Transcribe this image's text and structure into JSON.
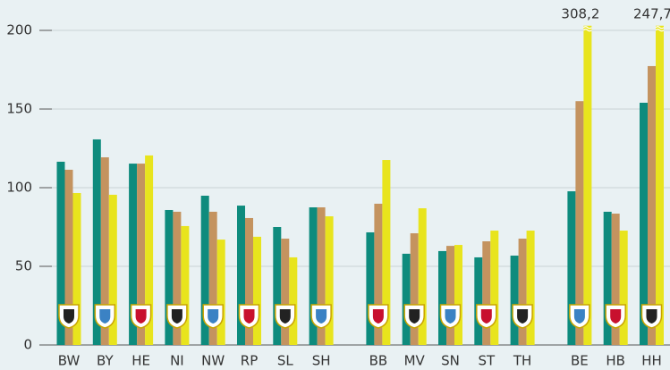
{
  "chart_data": {
    "type": "bar",
    "categories": [
      "BW",
      "BY",
      "HE",
      "NI",
      "NW",
      "RP",
      "SL",
      "SH",
      "BB",
      "MV",
      "SN",
      "ST",
      "TH",
      "BE",
      "HB",
      "HH"
    ],
    "series": [
      {
        "color": "#0e8b7d",
        "values": [
          116.5,
          130.7,
          115.3,
          85.8,
          94.9,
          88.6,
          75.0,
          87.5,
          71.6,
          58.0,
          59.7,
          55.7,
          56.8,
          97.7,
          84.7,
          154.0
        ]
      },
      {
        "color": "#c4935f",
        "values": [
          111.4,
          119.3,
          115.3,
          84.7,
          84.7,
          80.7,
          67.6,
          87.5,
          89.8,
          71.0,
          63.0,
          65.9,
          67.6,
          155.0,
          83.5,
          177.3
        ]
      },
      {
        "color": "#e8e41d",
        "values": [
          96.6,
          95.5,
          120.5,
          75.6,
          67.0,
          68.8,
          55.7,
          81.8,
          117.6,
          86.9,
          63.6,
          72.7,
          72.7,
          308.2,
          72.7,
          247.7
        ],
        "value_labels": [
          null,
          null,
          null,
          null,
          null,
          null,
          null,
          null,
          null,
          null,
          null,
          null,
          null,
          "308,2",
          null,
          "247,7"
        ]
      }
    ],
    "ylim": [
      0,
      215
    ],
    "yticks": [
      0,
      50,
      100,
      150,
      200
    ],
    "grid": true
  }
}
